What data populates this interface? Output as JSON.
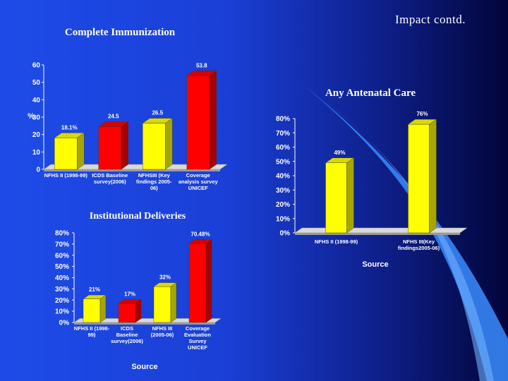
{
  "slide": {
    "title": "Impact contd."
  },
  "colors": {
    "yellow": "#ffff00",
    "red": "#ff0000",
    "platform": "#d9d9d9"
  },
  "chart_data": [
    {
      "id": "complete-immunization",
      "type": "bar",
      "title": "Complete Immunization",
      "ylabel": "%",
      "xlabel": "",
      "ylim": [
        0,
        60
      ],
      "yticks": [
        "0",
        "10",
        "20",
        "30",
        "40",
        "50",
        "60"
      ],
      "categories": [
        [
          "NFHS II (1998-99)"
        ],
        [
          "ICDS Baseline",
          "survey(2006)"
        ],
        [
          "NFHSIII (Key",
          "findings 2005-",
          "06)"
        ],
        [
          "Coverage",
          "analysis survey",
          "UNICEF"
        ]
      ],
      "values": [
        18.1,
        24.5,
        26.5,
        53.8
      ],
      "labels": [
        "18.1%",
        "24.5",
        "26.5",
        "53.8"
      ],
      "colors": [
        "yellow",
        "red",
        "yellow",
        "red"
      ],
      "grid": false
    },
    {
      "id": "institutional-deliveries",
      "type": "bar",
      "title": "Institutional Deliveries",
      "ylabel": "",
      "xlabel": "Source",
      "ylim": [
        0,
        80
      ],
      "yticks": [
        "0%",
        "10%",
        "20%",
        "30%",
        "40%",
        "50%",
        "60%",
        "70%",
        "80%"
      ],
      "categories": [
        [
          "NFHS II (1998-",
          "99)"
        ],
        [
          "ICDS",
          "Baseline",
          "survey(2006)"
        ],
        [
          "NFHS III",
          "(2005-06)"
        ],
        [
          "Coverage",
          "Evaluation",
          "Survey",
          "UNICEF"
        ]
      ],
      "values": [
        21,
        17,
        32,
        70.48
      ],
      "labels": [
        "21%",
        "17%",
        "32%",
        "70.48%"
      ],
      "colors": [
        "yellow",
        "red",
        "yellow",
        "red"
      ],
      "grid": false
    },
    {
      "id": "any-antenatal-care",
      "type": "bar",
      "title": "Any Antenatal Care",
      "ylabel": "",
      "xlabel": "Source",
      "ylim": [
        0,
        80
      ],
      "yticks": [
        "0%",
        "10%",
        "20%",
        "30%",
        "40%",
        "50%",
        "60%",
        "70%",
        "80%"
      ],
      "categories": [
        [
          "NFHS II (1998-99)"
        ],
        [
          "NFHS III(Key",
          "findings2005-06)"
        ]
      ],
      "values": [
        49,
        76
      ],
      "labels": [
        "49%",
        "76%"
      ],
      "colors": [
        "yellow",
        "yellow"
      ],
      "grid": false
    }
  ]
}
